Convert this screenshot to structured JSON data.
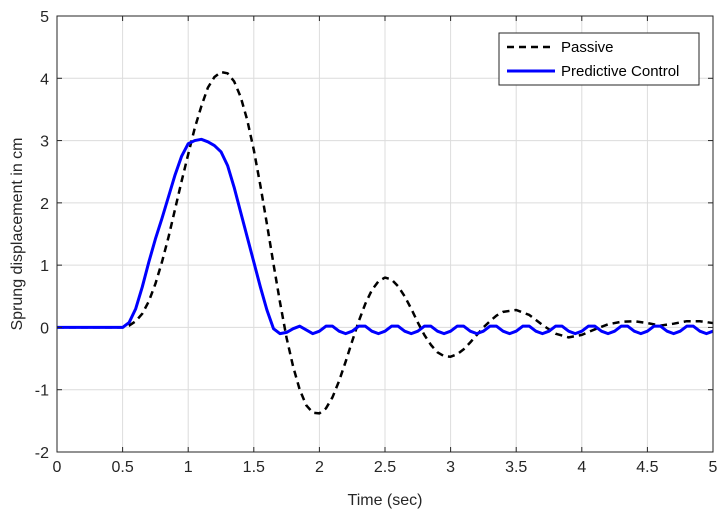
{
  "chart_data": {
    "type": "line",
    "title": "",
    "xlabel": "Time (sec)",
    "ylabel": "Sprung displacement in cm",
    "xlim": [
      0,
      5
    ],
    "ylim": [
      -2,
      5
    ],
    "xticks": [
      0,
      0.5,
      1,
      1.5,
      2,
      2.5,
      3,
      3.5,
      4,
      4.5,
      5
    ],
    "xtick_labels": [
      "0",
      "0.5",
      "1",
      "1.5",
      "2",
      "2.5",
      "3",
      "3.5",
      "4",
      "4.5",
      "5"
    ],
    "yticks": [
      -2,
      -1,
      0,
      1,
      2,
      3,
      4,
      5
    ],
    "ytick_labels": [
      "-2",
      "-1",
      "0",
      "1",
      "2",
      "3",
      "4",
      "5"
    ],
    "grid": true,
    "legend_position": "top-right",
    "series": [
      {
        "name": "Passive",
        "color": "#000000",
        "style": "dashed",
        "x": [
          0,
          0.5,
          0.55,
          0.6,
          0.65,
          0.7,
          0.75,
          0.8,
          0.85,
          0.9,
          0.95,
          1.0,
          1.05,
          1.1,
          1.15,
          1.2,
          1.25,
          1.3,
          1.35,
          1.4,
          1.45,
          1.5,
          1.55,
          1.6,
          1.65,
          1.7,
          1.75,
          1.8,
          1.85,
          1.9,
          1.95,
          2.0,
          2.05,
          2.1,
          2.15,
          2.2,
          2.25,
          2.3,
          2.35,
          2.4,
          2.45,
          2.5,
          2.55,
          2.6,
          2.65,
          2.7,
          2.75,
          2.8,
          2.85,
          2.9,
          2.95,
          3.0,
          3.05,
          3.1,
          3.15,
          3.2,
          3.25,
          3.3,
          3.35,
          3.4,
          3.5,
          3.6,
          3.7,
          3.8,
          3.9,
          4.0,
          4.1,
          4.2,
          4.3,
          4.4,
          4.5,
          4.6,
          4.7,
          4.8,
          4.9,
          5.0
        ],
        "y": [
          0,
          0,
          0.03,
          0.1,
          0.22,
          0.42,
          0.7,
          1.05,
          1.45,
          1.9,
          2.35,
          2.78,
          3.2,
          3.55,
          3.85,
          4.02,
          4.1,
          4.08,
          3.95,
          3.7,
          3.33,
          2.85,
          2.28,
          1.66,
          1.02,
          0.4,
          -0.17,
          -0.63,
          -1.0,
          -1.25,
          -1.37,
          -1.38,
          -1.3,
          -1.12,
          -0.86,
          -0.55,
          -0.22,
          0.1,
          0.38,
          0.6,
          0.74,
          0.8,
          0.77,
          0.66,
          0.5,
          0.3,
          0.08,
          -0.12,
          -0.28,
          -0.4,
          -0.46,
          -0.47,
          -0.43,
          -0.35,
          -0.24,
          -0.12,
          0.0,
          0.1,
          0.19,
          0.25,
          0.28,
          0.2,
          0.04,
          -0.1,
          -0.16,
          -0.12,
          -0.03,
          0.05,
          0.09,
          0.1,
          0.07,
          0.03,
          0.06,
          0.1,
          0.1,
          0.07
        ]
      },
      {
        "name": "Predictive Control",
        "color": "#0000ff",
        "style": "solid",
        "x": [
          0,
          0.5,
          0.55,
          0.6,
          0.65,
          0.7,
          0.75,
          0.8,
          0.85,
          0.9,
          0.95,
          1.0,
          1.05,
          1.1,
          1.15,
          1.2,
          1.25,
          1.3,
          1.35,
          1.4,
          1.45,
          1.5,
          1.55,
          1.6,
          1.65,
          1.7,
          1.75,
          1.8,
          1.85,
          1.9,
          1.95,
          2.0,
          2.05,
          2.1,
          2.15,
          2.2,
          2.25,
          2.3,
          2.35,
          2.4,
          2.45,
          2.5,
          2.55,
          2.6,
          2.65,
          2.7,
          2.75,
          2.8,
          2.85,
          2.9,
          2.95,
          3.0,
          3.05,
          3.1,
          3.15,
          3.2,
          3.25,
          3.3,
          3.35,
          3.4,
          3.45,
          3.5,
          3.55,
          3.6,
          3.65,
          3.7,
          3.75,
          3.8,
          3.85,
          3.9,
          3.95,
          4.0,
          4.05,
          4.1,
          4.15,
          4.2,
          4.25,
          4.3,
          4.35,
          4.4,
          4.45,
          4.5,
          4.55,
          4.6,
          4.65,
          4.7,
          4.75,
          4.8,
          4.85,
          4.9,
          4.95,
          5.0
        ],
        "y": [
          0,
          0,
          0.08,
          0.3,
          0.65,
          1.05,
          1.42,
          1.75,
          2.1,
          2.45,
          2.75,
          2.95,
          3.0,
          3.02,
          2.98,
          2.92,
          2.82,
          2.6,
          2.25,
          1.85,
          1.45,
          1.05,
          0.65,
          0.28,
          -0.02,
          -0.1,
          -0.08,
          -0.02,
          0.02,
          -0.04,
          -0.1,
          -0.06,
          0.02,
          0.02,
          -0.06,
          -0.1,
          -0.06,
          0.02,
          0.02,
          -0.06,
          -0.1,
          -0.06,
          0.02,
          0.02,
          -0.06,
          -0.1,
          -0.06,
          0.02,
          0.02,
          -0.06,
          -0.1,
          -0.06,
          0.02,
          0.02,
          -0.06,
          -0.1,
          -0.06,
          0.02,
          0.02,
          -0.06,
          -0.1,
          -0.06,
          0.02,
          0.02,
          -0.06,
          -0.1,
          -0.06,
          0.02,
          0.02,
          -0.06,
          -0.1,
          -0.06,
          0.02,
          0.02,
          -0.06,
          -0.1,
          -0.06,
          0.02,
          0.02,
          -0.06,
          -0.1,
          -0.06,
          0.02,
          0.02,
          -0.06,
          -0.1,
          -0.06,
          0.02,
          0.02,
          -0.06,
          -0.1,
          -0.06
        ]
      }
    ]
  }
}
